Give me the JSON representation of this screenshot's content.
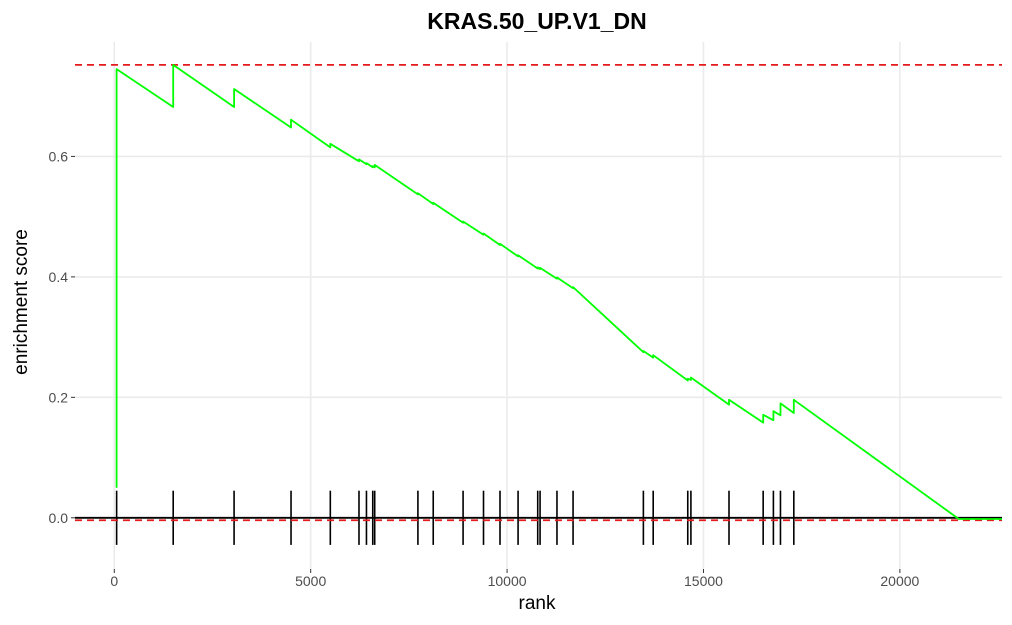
{
  "chart_data": {
    "type": "line",
    "title": "KRAS.50_UP.V1_DN",
    "xlabel": "rank",
    "ylabel": "enrichment score",
    "xlim": [
      -1000,
      22600
    ],
    "ylim": [
      -0.085,
      0.79
    ],
    "x_ticks": [
      0,
      5000,
      10000,
      15000,
      20000
    ],
    "x_tick_labels": [
      "0",
      "5000",
      "10000",
      "15000",
      "20000"
    ],
    "y_ticks": [
      0.0,
      0.2,
      0.4,
      0.6
    ],
    "y_tick_labels": [
      "0.0",
      "0.2",
      "0.4",
      "0.6"
    ],
    "grid": true,
    "colors": {
      "curve": "#00ff00",
      "ref_lines": "#e41a1c",
      "hits": "#000000",
      "grid": "#ebebeb"
    },
    "reference_lines": [
      0.752,
      -0.004
    ],
    "hit_ranks": [
      60,
      1500,
      3050,
      4500,
      5500,
      6230,
      6420,
      6580,
      6630,
      7730,
      8120,
      8880,
      9400,
      9820,
      10280,
      10780,
      10840,
      11270,
      11680,
      13470,
      13720,
      14600,
      14680,
      15650,
      16520,
      16780,
      16960,
      17300
    ],
    "hit_tick_range": [
      -0.045,
      0.045
    ],
    "series": [
      {
        "values": [
          [
            60,
            0.05
          ],
          [
            60,
            0.745
          ],
          [
            1500,
            0.682
          ],
          [
            1500,
            0.752
          ],
          [
            3050,
            0.682
          ],
          [
            3050,
            0.712
          ],
          [
            4500,
            0.648
          ],
          [
            4500,
            0.661
          ],
          [
            5500,
            0.615
          ],
          [
            5500,
            0.621
          ],
          [
            6230,
            0.592
          ],
          [
            6230,
            0.595
          ],
          [
            6420,
            0.587
          ],
          [
            6420,
            0.589
          ],
          [
            6580,
            0.582
          ],
          [
            6580,
            0.584
          ],
          [
            6630,
            0.582
          ],
          [
            6630,
            0.586
          ],
          [
            7730,
            0.537
          ],
          [
            7730,
            0.539
          ],
          [
            8120,
            0.521
          ],
          [
            8120,
            0.523
          ],
          [
            8880,
            0.49
          ],
          [
            8880,
            0.492
          ],
          [
            9400,
            0.47
          ],
          [
            9400,
            0.472
          ],
          [
            9820,
            0.453
          ],
          [
            9820,
            0.455
          ],
          [
            10280,
            0.434
          ],
          [
            10280,
            0.436
          ],
          [
            10780,
            0.414
          ],
          [
            10780,
            0.416
          ],
          [
            10840,
            0.413
          ],
          [
            10840,
            0.415
          ],
          [
            11270,
            0.397
          ],
          [
            11270,
            0.399
          ],
          [
            11680,
            0.381
          ],
          [
            11680,
            0.383
          ],
          [
            13470,
            0.275
          ],
          [
            13470,
            0.277
          ],
          [
            13720,
            0.266
          ],
          [
            13720,
            0.27
          ],
          [
            14600,
            0.228
          ],
          [
            14600,
            0.231
          ],
          [
            14680,
            0.229
          ],
          [
            14680,
            0.233
          ],
          [
            15650,
            0.188
          ],
          [
            15650,
            0.196
          ],
          [
            16520,
            0.158
          ],
          [
            16520,
            0.171
          ],
          [
            16780,
            0.162
          ],
          [
            16780,
            0.177
          ],
          [
            16960,
            0.17
          ],
          [
            16960,
            0.19
          ],
          [
            17300,
            0.174
          ],
          [
            17300,
            0.196
          ],
          [
            21500,
            -0.002
          ],
          [
            22600,
            -0.002
          ]
        ]
      }
    ]
  }
}
